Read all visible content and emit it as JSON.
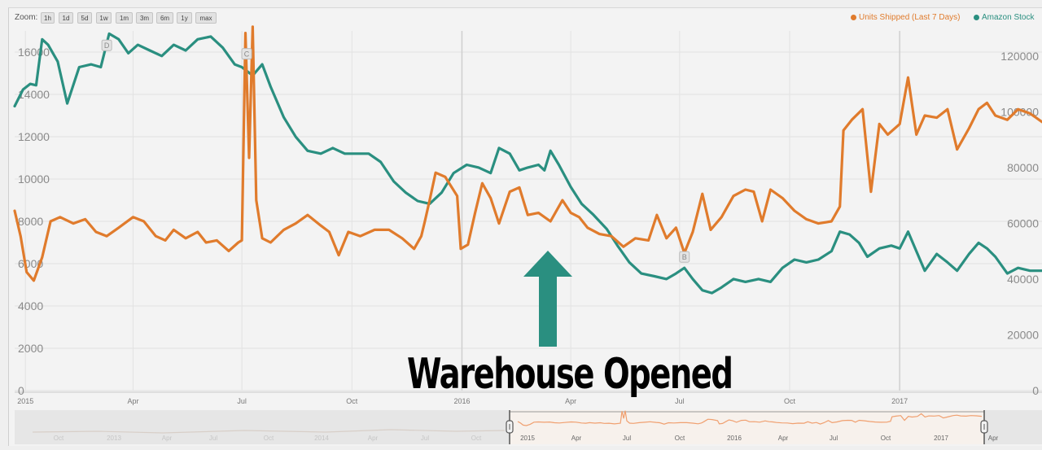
{
  "toolbar": {
    "zoom_label": "Zoom:",
    "buttons": [
      "1h",
      "1d",
      "5d",
      "1w",
      "1m",
      "3m",
      "6m",
      "1y",
      "max"
    ]
  },
  "legend": [
    {
      "label": "Units Shipped (Last 7 Days)",
      "color": "#e07b2c"
    },
    {
      "label": "Amazon Stock",
      "color": "#2a8f80"
    }
  ],
  "annotation": {
    "text": "Warehouse Opened",
    "arrow_color": "#2a8f80",
    "icon": "up-arrow-icon"
  },
  "colors": {
    "units_shipped": "#e07b2c",
    "amazon_stock": "#2a8f80",
    "navigator_line": "#f0a070"
  },
  "navigator": {
    "labels_dim": [
      "Oct",
      "2013",
      "Apr",
      "Jul",
      "Oct",
      "2014",
      "Apr",
      "Jul",
      "Oct"
    ],
    "labels": [
      "2015",
      "Apr",
      "Jul",
      "Oct",
      "2016",
      "Apr",
      "Jul",
      "Oct",
      "2017",
      "Apr"
    ]
  },
  "chart_data": {
    "type": "line",
    "title": "",
    "x_range": [
      "2014-12-23",
      "2017-04-30"
    ],
    "x_ticks": [
      "2015",
      "Apr",
      "Jul",
      "Oct",
      "2016",
      "Apr",
      "Jul",
      "Oct",
      "2017"
    ],
    "x_tick_dates": [
      "2015-01-01",
      "2015-04-01",
      "2015-07-01",
      "2015-10-01",
      "2016-01-01",
      "2016-04-01",
      "2016-07-01",
      "2016-10-01",
      "2017-01-01"
    ],
    "y_left": {
      "ticks": [
        0,
        2000,
        4000,
        6000,
        8000,
        10000,
        12000,
        14000,
        16000
      ],
      "range": [
        0,
        17000
      ]
    },
    "y_right": {
      "ticks": [
        0,
        20000,
        40000,
        60000,
        80000,
        100000,
        120000
      ],
      "range": [
        0,
        129000
      ]
    },
    "grid": true,
    "legend_position": "top-right",
    "markers": [
      {
        "label": "D",
        "date": "2015-03-10",
        "value": 16300
      },
      {
        "label": "C",
        "date": "2015-07-05",
        "value": 15900
      },
      {
        "label": "B",
        "date": "2016-07-05",
        "value": 6300
      }
    ],
    "series": [
      {
        "name": "Units Shipped (Last 7 Days)",
        "axis": "left",
        "points": [
          [
            "2014-12-23",
            8500
          ],
          [
            "2014-12-28",
            7300
          ],
          [
            "2015-01-02",
            5600
          ],
          [
            "2015-01-08",
            5200
          ],
          [
            "2015-01-15",
            6300
          ],
          [
            "2015-01-22",
            8000
          ],
          [
            "2015-01-30",
            8200
          ],
          [
            "2015-02-10",
            7900
          ],
          [
            "2015-02-20",
            8100
          ],
          [
            "2015-03-01",
            7500
          ],
          [
            "2015-03-10",
            7300
          ],
          [
            "2015-03-20",
            7700
          ],
          [
            "2015-04-01",
            8200
          ],
          [
            "2015-04-10",
            8000
          ],
          [
            "2015-04-20",
            7300
          ],
          [
            "2015-04-28",
            7100
          ],
          [
            "2015-05-05",
            7600
          ],
          [
            "2015-05-15",
            7200
          ],
          [
            "2015-05-25",
            7500
          ],
          [
            "2015-06-01",
            7000
          ],
          [
            "2015-06-10",
            7100
          ],
          [
            "2015-06-20",
            6600
          ],
          [
            "2015-06-28",
            7000
          ],
          [
            "2015-07-01",
            7100
          ],
          [
            "2015-07-04",
            16900
          ],
          [
            "2015-07-07",
            11000
          ],
          [
            "2015-07-10",
            17200
          ],
          [
            "2015-07-13",
            9000
          ],
          [
            "2015-07-18",
            7200
          ],
          [
            "2015-07-25",
            7000
          ],
          [
            "2015-08-05",
            7600
          ],
          [
            "2015-08-15",
            7900
          ],
          [
            "2015-08-25",
            8300
          ],
          [
            "2015-09-05",
            7800
          ],
          [
            "2015-09-12",
            7500
          ],
          [
            "2015-09-20",
            6400
          ],
          [
            "2015-09-28",
            7500
          ],
          [
            "2015-10-08",
            7300
          ],
          [
            "2015-10-20",
            7600
          ],
          [
            "2015-11-01",
            7600
          ],
          [
            "2015-11-12",
            7200
          ],
          [
            "2015-11-22",
            6700
          ],
          [
            "2015-11-28",
            7300
          ],
          [
            "2015-12-01",
            8000
          ],
          [
            "2015-12-05",
            9000
          ],
          [
            "2015-12-10",
            10300
          ],
          [
            "2015-12-18",
            10100
          ],
          [
            "2015-12-28",
            9200
          ],
          [
            "2015-12-31",
            6700
          ],
          [
            "2016-01-06",
            6900
          ],
          [
            "2016-01-12",
            8400
          ],
          [
            "2016-01-18",
            9800
          ],
          [
            "2016-01-25",
            9100
          ],
          [
            "2016-02-01",
            7900
          ],
          [
            "2016-02-10",
            9400
          ],
          [
            "2016-02-18",
            9600
          ],
          [
            "2016-02-25",
            8300
          ],
          [
            "2016-03-05",
            8400
          ],
          [
            "2016-03-15",
            8000
          ],
          [
            "2016-03-25",
            9000
          ],
          [
            "2016-04-01",
            8400
          ],
          [
            "2016-04-08",
            8200
          ],
          [
            "2016-04-15",
            7700
          ],
          [
            "2016-04-25",
            7400
          ],
          [
            "2016-05-05",
            7300
          ],
          [
            "2016-05-15",
            6800
          ],
          [
            "2016-05-25",
            7200
          ],
          [
            "2016-06-05",
            7100
          ],
          [
            "2016-06-12",
            8300
          ],
          [
            "2016-06-20",
            7200
          ],
          [
            "2016-06-28",
            7700
          ],
          [
            "2016-07-05",
            6500
          ],
          [
            "2016-07-12",
            7500
          ],
          [
            "2016-07-20",
            9300
          ],
          [
            "2016-07-27",
            7600
          ],
          [
            "2016-08-05",
            8200
          ],
          [
            "2016-08-15",
            9200
          ],
          [
            "2016-08-25",
            9500
          ],
          [
            "2016-09-01",
            9400
          ],
          [
            "2016-09-08",
            8000
          ],
          [
            "2016-09-15",
            9500
          ],
          [
            "2016-09-25",
            9100
          ],
          [
            "2016-10-05",
            8500
          ],
          [
            "2016-10-15",
            8100
          ],
          [
            "2016-10-25",
            7900
          ],
          [
            "2016-11-05",
            8000
          ],
          [
            "2016-11-12",
            8700
          ],
          [
            "2016-11-15",
            12300
          ],
          [
            "2016-11-22",
            12800
          ],
          [
            "2016-12-01",
            13300
          ],
          [
            "2016-12-08",
            9400
          ],
          [
            "2016-12-15",
            12600
          ],
          [
            "2016-12-22",
            12100
          ],
          [
            "2017-01-01",
            12600
          ],
          [
            "2017-01-08",
            14800
          ],
          [
            "2017-01-15",
            12100
          ],
          [
            "2017-01-22",
            13000
          ],
          [
            "2017-02-01",
            12900
          ],
          [
            "2017-02-10",
            13300
          ],
          [
            "2017-02-18",
            11400
          ],
          [
            "2017-02-28",
            12400
          ],
          [
            "2017-03-08",
            13300
          ],
          [
            "2017-03-15",
            13600
          ],
          [
            "2017-03-22",
            13000
          ],
          [
            "2017-04-01",
            12800
          ],
          [
            "2017-04-10",
            13300
          ],
          [
            "2017-04-20",
            13100
          ],
          [
            "2017-04-30",
            12700
          ]
        ]
      },
      {
        "name": "Amazon Stock",
        "axis": "right",
        "points": [
          [
            "2014-12-23",
            102000
          ],
          [
            "2014-12-30",
            108000
          ],
          [
            "2015-01-05",
            110000
          ],
          [
            "2015-01-10",
            109500
          ],
          [
            "2015-01-15",
            126000
          ],
          [
            "2015-01-20",
            124000
          ],
          [
            "2015-01-28",
            118000
          ],
          [
            "2015-02-05",
            103000
          ],
          [
            "2015-02-15",
            116000
          ],
          [
            "2015-02-25",
            117000
          ],
          [
            "2015-03-05",
            116000
          ],
          [
            "2015-03-12",
            128000
          ],
          [
            "2015-03-20",
            126000
          ],
          [
            "2015-03-28",
            121000
          ],
          [
            "2015-04-05",
            124000
          ],
          [
            "2015-04-15",
            122000
          ],
          [
            "2015-04-25",
            120000
          ],
          [
            "2015-05-05",
            124000
          ],
          [
            "2015-05-15",
            122000
          ],
          [
            "2015-05-25",
            126000
          ],
          [
            "2015-06-05",
            127000
          ],
          [
            "2015-06-15",
            123000
          ],
          [
            "2015-06-25",
            117000
          ],
          [
            "2015-07-01",
            116000
          ],
          [
            "2015-07-10",
            113000
          ],
          [
            "2015-07-18",
            117000
          ],
          [
            "2015-07-25",
            109000
          ],
          [
            "2015-08-05",
            98000
          ],
          [
            "2015-08-15",
            91000
          ],
          [
            "2015-08-25",
            86000
          ],
          [
            "2015-09-05",
            85000
          ],
          [
            "2015-09-15",
            87000
          ],
          [
            "2015-09-25",
            85000
          ],
          [
            "2015-10-05",
            85000
          ],
          [
            "2015-10-15",
            85000
          ],
          [
            "2015-10-25",
            82000
          ],
          [
            "2015-11-05",
            75000
          ],
          [
            "2015-11-15",
            71000
          ],
          [
            "2015-11-25",
            68000
          ],
          [
            "2015-12-05",
            67000
          ],
          [
            "2015-12-15",
            71000
          ],
          [
            "2015-12-25",
            78000
          ],
          [
            "2016-01-05",
            81000
          ],
          [
            "2016-01-15",
            80000
          ],
          [
            "2016-01-25",
            78000
          ],
          [
            "2016-02-01",
            87000
          ],
          [
            "2016-02-10",
            85000
          ],
          [
            "2016-02-18",
            79000
          ],
          [
            "2016-02-25",
            80000
          ],
          [
            "2016-03-05",
            81000
          ],
          [
            "2016-03-10",
            79000
          ],
          [
            "2016-03-15",
            86000
          ],
          [
            "2016-03-22",
            81000
          ],
          [
            "2016-04-01",
            73000
          ],
          [
            "2016-04-10",
            67000
          ],
          [
            "2016-04-20",
            63000
          ],
          [
            "2016-05-01",
            58000
          ],
          [
            "2016-05-10",
            52000
          ],
          [
            "2016-05-20",
            46000
          ],
          [
            "2016-05-30",
            42000
          ],
          [
            "2016-06-10",
            41000
          ],
          [
            "2016-06-20",
            40000
          ],
          [
            "2016-06-28",
            42000
          ],
          [
            "2016-07-05",
            44000
          ],
          [
            "2016-07-12",
            40000
          ],
          [
            "2016-07-20",
            36000
          ],
          [
            "2016-07-28",
            35000
          ],
          [
            "2016-08-05",
            37000
          ],
          [
            "2016-08-15",
            40000
          ],
          [
            "2016-08-25",
            39000
          ],
          [
            "2016-09-05",
            40000
          ],
          [
            "2016-09-15",
            39000
          ],
          [
            "2016-09-25",
            44000
          ],
          [
            "2016-10-05",
            47000
          ],
          [
            "2016-10-15",
            46000
          ],
          [
            "2016-10-25",
            47000
          ],
          [
            "2016-11-05",
            50000
          ],
          [
            "2016-11-12",
            57000
          ],
          [
            "2016-11-20",
            56000
          ],
          [
            "2016-11-28",
            53000
          ],
          [
            "2016-12-05",
            48000
          ],
          [
            "2016-12-15",
            51000
          ],
          [
            "2016-12-25",
            52000
          ],
          [
            "2017-01-01",
            51000
          ],
          [
            "2017-01-08",
            57000
          ],
          [
            "2017-01-15",
            50000
          ],
          [
            "2017-01-22",
            43000
          ],
          [
            "2017-02-01",
            49000
          ],
          [
            "2017-02-10",
            46000
          ],
          [
            "2017-02-18",
            43000
          ],
          [
            "2017-02-28",
            49000
          ],
          [
            "2017-03-08",
            53000
          ],
          [
            "2017-03-15",
            51000
          ],
          [
            "2017-03-22",
            48000
          ],
          [
            "2017-04-01",
            42000
          ],
          [
            "2017-04-10",
            44000
          ],
          [
            "2017-04-20",
            43000
          ],
          [
            "2017-04-30",
            43000
          ]
        ]
      }
    ]
  }
}
